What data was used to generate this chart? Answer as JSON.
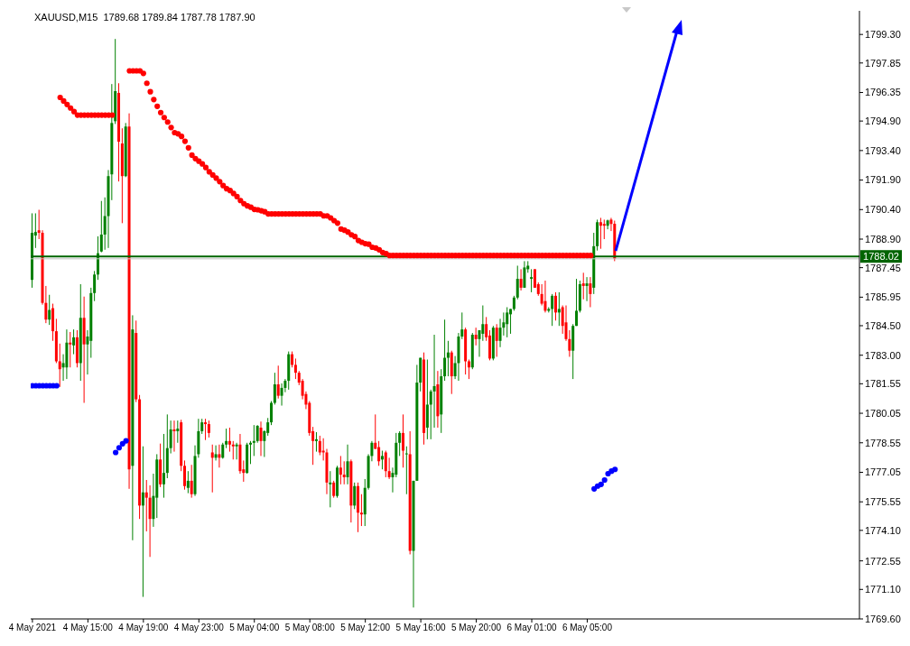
{
  "chart_data": {
    "type": "candlestick",
    "title": "XAUUSD,M15  1789.68 1789.84 1787.78 1787.90",
    "marker": "circle",
    "categories": [
      "4 May 2021",
      null,
      null,
      null,
      null,
      null,
      null,
      null,
      null,
      null,
      null,
      null,
      null,
      null,
      null,
      null,
      "4 May 15:00",
      null,
      null,
      null,
      null,
      null,
      null,
      null,
      null,
      null,
      null,
      null,
      null,
      null,
      null,
      null,
      "4 May 19:00",
      null,
      null,
      null,
      null,
      null,
      null,
      null,
      null,
      null,
      null,
      null,
      null,
      null,
      null,
      null,
      "4 May 23:00",
      null,
      null,
      null,
      null,
      null,
      null,
      null,
      null,
      null,
      null,
      null,
      null,
      null,
      null,
      null,
      "5 May 04:00",
      null,
      null,
      null,
      null,
      null,
      null,
      null,
      null,
      null,
      null,
      null,
      null,
      null,
      null,
      null,
      "5 May 08:00",
      null,
      null,
      null,
      null,
      null,
      null,
      null,
      null,
      null,
      null,
      null,
      null,
      null,
      null,
      null,
      "5 May 12:00",
      null,
      null,
      null,
      null,
      null,
      null,
      null,
      null,
      null,
      null,
      null,
      null,
      null,
      null,
      null,
      "5 May 16:00",
      null,
      null,
      null,
      null,
      null,
      null,
      null,
      null,
      null,
      null,
      null,
      null,
      null,
      null,
      null,
      "5 May 20:00",
      null,
      null,
      null,
      null,
      null,
      null,
      null,
      null,
      null,
      null,
      null,
      null,
      null,
      null,
      null,
      "6 May 01:00",
      null,
      null,
      null,
      null,
      null,
      null,
      null,
      null,
      null,
      null,
      null,
      null,
      null,
      null,
      null,
      "6 May 05:00",
      null,
      null,
      null,
      null,
      null,
      null,
      null,
      null,
      null,
      null,
      null,
      null,
      null,
      null,
      null,
      null,
      null,
      null,
      null,
      null,
      null,
      null,
      null,
      null,
      null,
      null,
      null,
      null,
      null,
      null,
      null,
      null,
      null,
      null,
      null,
      null,
      null,
      null,
      null,
      null,
      null,
      null,
      null,
      null,
      null,
      null,
      null,
      null,
      null,
      null,
      null,
      null,
      null,
      null,
      null,
      null,
      null,
      null,
      null,
      null,
      null,
      null,
      null,
      null,
      null,
      null,
      null,
      null,
      null,
      null,
      null,
      null,
      null,
      null,
      null,
      null,
      null,
      null
    ],
    "ohlc": [
      [
        1786.83,
        1790.21,
        1786.43,
        1789.22
      ],
      [
        1789.08,
        1790.21,
        1788.45,
        1789.26
      ],
      [
        1789.35,
        1790.39,
        1788.9,
        1789.22
      ],
      [
        1789.22,
        1789.35,
        1785.57,
        1785.66
      ],
      [
        1785.66,
        1786.52,
        1784.63,
        1784.81
      ],
      [
        1784.81,
        1786.07,
        1784.54,
        1785.3
      ],
      [
        1785.39,
        1785.62,
        1783.73,
        1784.22
      ],
      [
        1784.22,
        1784.85,
        1782.6,
        1782.69
      ],
      [
        1782.69,
        1783.59,
        1781.39,
        1782.29
      ],
      [
        1782.38,
        1783.05,
        1781.7,
        1782.6
      ],
      [
        1782.38,
        1784.31,
        1781.79,
        1783.64
      ],
      [
        1783.64,
        1784.18,
        1782.38,
        1783.55
      ],
      [
        1783.5,
        1784.31,
        1783.05,
        1783.91
      ],
      [
        1783.91,
        1784.27,
        1782.38,
        1782.6
      ],
      [
        1782.6,
        1786.61,
        1781.7,
        1784.9
      ],
      [
        1784.9,
        1785.98,
        1780.58,
        1783.55
      ],
      [
        1783.55,
        1784.27,
        1782.02,
        1783.95
      ],
      [
        1783.73,
        1786.43,
        1782.87,
        1786.16
      ],
      [
        1786.16,
        1787.28,
        1785.75,
        1787.1
      ],
      [
        1787.1,
        1789.04,
        1786.83,
        1788.18
      ],
      [
        1788.27,
        1790.84,
        1788.23,
        1789.13
      ],
      [
        1789.13,
        1791.02,
        1788.36,
        1790.07
      ],
      [
        1790.07,
        1792.41,
        1788.45,
        1792.1
      ],
      [
        1792.19,
        1796.78,
        1790.88,
        1794.8
      ],
      [
        1794.89,
        1799.07,
        1794.75,
        1796.42
      ],
      [
        1796.33,
        1796.82,
        1791.83,
        1793.85
      ],
      [
        1793.76,
        1794.53,
        1789.71,
        1792.1
      ],
      [
        1792.1,
        1794.8,
        1792.05,
        1794.62
      ],
      [
        1794.62,
        1795.29,
        1776.21,
        1777.2
      ],
      [
        1777.38,
        1785.03,
        1773.6,
        1784.31
      ],
      [
        1784.13,
        1784.76,
        1780.62,
        1780.76
      ],
      [
        1780.76,
        1780.98,
        1774.68,
        1775.36
      ],
      [
        1775.36,
        1778.37,
        1770.72,
        1776.03
      ],
      [
        1776.03,
        1776.66,
        1774.05,
        1775.76
      ],
      [
        1775.76,
        1776.39,
        1772.75,
        1774.68
      ],
      [
        1774.68,
        1776.98,
        1774.28,
        1775.85
      ],
      [
        1775.76,
        1777.97,
        1774.73,
        1777.7
      ],
      [
        1777.7,
        1778.51,
        1776.3,
        1776.44
      ],
      [
        1776.44,
        1779.0,
        1775.76,
        1777.02
      ],
      [
        1777.02,
        1779.99,
        1776.75,
        1778.28
      ],
      [
        1778.28,
        1779.68,
        1778.01,
        1779.23
      ],
      [
        1779.23,
        1779.68,
        1778.1,
        1779.14
      ],
      [
        1779.14,
        1779.68,
        1778.55,
        1779.27
      ],
      [
        1779.59,
        1779.72,
        1777.11,
        1777.38
      ],
      [
        1777.38,
        1777.65,
        1776.17,
        1776.35
      ],
      [
        1776.26,
        1777.11,
        1775.99,
        1776.62
      ],
      [
        1776.62,
        1777.43,
        1775.76,
        1775.94
      ],
      [
        1775.94,
        1778.42,
        1775.85,
        1777.88
      ],
      [
        1777.97,
        1779.77,
        1777.79,
        1779.14
      ],
      [
        1779.14,
        1779.77,
        1779.0,
        1779.59
      ],
      [
        1779.59,
        1779.77,
        1778.69,
        1779.5
      ],
      [
        1779.5,
        1779.68,
        1778.82,
        1779.05
      ],
      [
        1778.06,
        1778.46,
        1776.03,
        1777.79
      ],
      [
        1777.79,
        1778.42,
        1777.65,
        1777.97
      ],
      [
        1777.97,
        1778.46,
        1777.29,
        1777.79
      ],
      [
        1777.79,
        1778.55,
        1777.74,
        1778.46
      ],
      [
        1778.46,
        1779.27,
        1778.28,
        1778.64
      ],
      [
        1778.64,
        1779.32,
        1778.1,
        1778.46
      ],
      [
        1778.46,
        1778.64,
        1777.7,
        1778.37
      ],
      [
        1778.37,
        1778.55,
        1777.7,
        1778.46
      ],
      [
        1778.46,
        1779.0,
        1776.98,
        1777.11
      ],
      [
        1777.2,
        1777.65,
        1776.57,
        1777.02
      ],
      [
        1777.02,
        1778.55,
        1776.98,
        1778.46
      ],
      [
        1778.46,
        1778.64,
        1777.47,
        1778.55
      ],
      [
        1778.55,
        1779.45,
        1777.88,
        1778.64
      ],
      [
        1778.64,
        1779.45,
        1778.55,
        1779.41
      ],
      [
        1779.32,
        1779.63,
        1777.88,
        1778.64
      ],
      [
        1778.64,
        1779.18,
        1777.83,
        1779.14
      ],
      [
        1779.05,
        1779.81,
        1778.91,
        1779.59
      ],
      [
        1779.59,
        1780.67,
        1779.45,
        1780.58
      ],
      [
        1780.58,
        1782.11,
        1780.49,
        1781.52
      ],
      [
        1781.52,
        1782.47,
        1780.8,
        1780.94
      ],
      [
        1780.94,
        1781.57,
        1780.44,
        1781.34
      ],
      [
        1781.34,
        1781.79,
        1781.12,
        1781.7
      ],
      [
        1781.7,
        1783.19,
        1781.25,
        1783.05
      ],
      [
        1783.05,
        1783.19,
        1782.38,
        1782.51
      ],
      [
        1782.51,
        1782.83,
        1781.79,
        1782.11
      ],
      [
        1782.11,
        1782.2,
        1781.48,
        1781.61
      ],
      [
        1781.7,
        1781.79,
        1780.76,
        1780.94
      ],
      [
        1781.03,
        1781.16,
        1780.26,
        1780.49
      ],
      [
        1780.58,
        1780.67,
        1778.91,
        1779.05
      ],
      [
        1779.14,
        1779.36,
        1777.43,
        1778.64
      ],
      [
        1778.64,
        1779.09,
        1778.1,
        1778.73
      ],
      [
        1778.64,
        1778.91,
        1777.92,
        1778.06
      ],
      [
        1778.15,
        1778.78,
        1777.65,
        1778.06
      ],
      [
        1778.06,
        1778.24,
        1775.94,
        1776.53
      ],
      [
        1776.44,
        1777.11,
        1775.27,
        1776.53
      ],
      [
        1776.53,
        1776.62,
        1775.76,
        1775.85
      ],
      [
        1775.85,
        1777.38,
        1775.76,
        1777.29
      ],
      [
        1777.29,
        1777.88,
        1776.44,
        1776.93
      ],
      [
        1776.93,
        1777.61,
        1776.44,
        1776.8
      ],
      [
        1776.8,
        1778.46,
        1776.44,
        1777.61
      ],
      [
        1777.61,
        1777.7,
        1774.5,
        1775.36
      ],
      [
        1775.36,
        1776.53,
        1775.18,
        1776.35
      ],
      [
        1776.35,
        1776.53,
        1774.01,
        1775.0
      ],
      [
        1775.0,
        1775.94,
        1774.32,
        1774.91
      ],
      [
        1774.91,
        1776.71,
        1774.32,
        1776.26
      ],
      [
        1776.26,
        1777.97,
        1776.17,
        1777.88
      ],
      [
        1777.88,
        1778.64,
        1777.61,
        1778.55
      ],
      [
        1778.55,
        1779.99,
        1778.24,
        1778.24
      ],
      [
        1778.33,
        1778.64,
        1777.38,
        1777.61
      ],
      [
        1777.7,
        1778.15,
        1777.2,
        1777.88
      ],
      [
        1778.06,
        1778.15,
        1776.8,
        1777.11
      ],
      [
        1777.11,
        1777.79,
        1776.71,
        1776.8
      ],
      [
        1776.8,
        1777.29,
        1776.03,
        1777.02
      ],
      [
        1776.93,
        1779.05,
        1776.8,
        1778.55
      ],
      [
        1778.55,
        1779.14,
        1777.88,
        1779.05
      ],
      [
        1779.05,
        1779.99,
        1777.29,
        1778.15
      ],
      [
        1777.97,
        1778.37,
        1775.94,
        1778.01
      ],
      [
        1777.97,
        1779.14,
        1772.88,
        1773.06
      ],
      [
        1773.06,
        1776.62,
        1770.18,
        1776.62
      ],
      [
        1776.62,
        1782.51,
        1776.62,
        1781.61
      ],
      [
        1781.61,
        1782.87,
        1781.16,
        1782.87
      ],
      [
        1782.78,
        1783.14,
        1778.46,
        1779.05
      ],
      [
        1779.32,
        1782.78,
        1778.73,
        1780.49
      ],
      [
        1780.49,
        1781.25,
        1778.73,
        1781.16
      ],
      [
        1781.16,
        1784.04,
        1779.32,
        1781.43
      ],
      [
        1781.52,
        1782.2,
        1779.32,
        1779.9
      ],
      [
        1779.99,
        1782.29,
        1779.05,
        1781.93
      ],
      [
        1781.93,
        1784.81,
        1781.7,
        1782.87
      ],
      [
        1782.87,
        1783.73,
        1781.93,
        1783.14
      ],
      [
        1783.14,
        1783.23,
        1781.03,
        1781.93
      ],
      [
        1781.93,
        1782.96,
        1781.79,
        1782.6
      ],
      [
        1782.6,
        1784.13,
        1781.7,
        1783.95
      ],
      [
        1783.95,
        1785.17,
        1783.82,
        1784.31
      ],
      [
        1784.31,
        1784.4,
        1782.02,
        1782.69
      ],
      [
        1782.69,
        1782.78,
        1781.79,
        1782.38
      ],
      [
        1782.38,
        1784.13,
        1782.29,
        1784.04
      ],
      [
        1784.04,
        1784.4,
        1783.5,
        1783.82
      ],
      [
        1783.82,
        1784.27,
        1782.92,
        1784.27
      ],
      [
        1784.09,
        1785.53,
        1783.73,
        1784.58
      ],
      [
        1784.58,
        1784.94,
        1783.73,
        1783.91
      ],
      [
        1784.0,
        1784.27,
        1782.74,
        1782.83
      ],
      [
        1782.83,
        1784.49,
        1782.74,
        1784.4
      ],
      [
        1784.4,
        1784.58,
        1782.92,
        1783.73
      ],
      [
        1783.73,
        1784.85,
        1783.41,
        1784.4
      ],
      [
        1784.4,
        1785.17,
        1784.0,
        1784.67
      ],
      [
        1784.58,
        1785.44,
        1783.91,
        1785.17
      ],
      [
        1785.08,
        1785.35,
        1784.09,
        1785.35
      ],
      [
        1785.35,
        1786.02,
        1785.26,
        1785.93
      ],
      [
        1785.93,
        1787.55,
        1785.84,
        1786.88
      ],
      [
        1786.88,
        1787.37,
        1786.29,
        1786.43
      ],
      [
        1786.43,
        1787.78,
        1786.43,
        1787.46
      ],
      [
        1787.37,
        1787.78,
        1787.19,
        1787.55
      ],
      [
        1786.88,
        1787.37,
        1786.2,
        1786.97
      ],
      [
        1787.37,
        1787.37,
        1786.43,
        1786.43
      ],
      [
        1786.61,
        1786.7,
        1786.02,
        1786.11
      ],
      [
        1786.11,
        1786.61,
        1785.53,
        1785.62
      ],
      [
        1785.75,
        1786.79,
        1785.17,
        1785.26
      ],
      [
        1785.26,
        1785.44,
        1785.17,
        1785.35
      ],
      [
        1785.35,
        1786.11,
        1784.49,
        1786.02
      ],
      [
        1786.02,
        1786.2,
        1784.76,
        1785.17
      ],
      [
        1785.17,
        1786.2,
        1784.49,
        1785.35
      ],
      [
        1785.44,
        1785.53,
        1784.09,
        1784.49
      ],
      [
        1784.67,
        1785.53,
        1783.73,
        1783.82
      ],
      [
        1783.82,
        1784.27,
        1782.92,
        1783.23
      ],
      [
        1783.23,
        1784.58,
        1781.79,
        1784.49
      ],
      [
        1784.49,
        1786.88,
        1784.49,
        1785.26
      ],
      [
        1785.26,
        1786.79,
        1785.17,
        1786.61
      ],
      [
        1786.65,
        1787.19,
        1785.84,
        1786.52
      ],
      [
        1786.52,
        1786.97,
        1785.75,
        1786.65
      ],
      [
        1786.65,
        1786.97,
        1785.44,
        1786.11
      ],
      [
        1786.43,
        1789.22,
        1786.11,
        1788.54
      ],
      [
        1788.54,
        1789.89,
        1788.32,
        1789.76
      ],
      [
        1789.76,
        1789.98,
        1788.41,
        1789.58
      ],
      [
        1789.67,
        1789.89,
        1788.9,
        1789.58
      ],
      [
        1789.58,
        1789.89,
        1789.4,
        1789.85
      ],
      [
        1789.89,
        1789.98,
        1789.31,
        1789.67
      ],
      [
        1789.68,
        1789.84,
        1787.78,
        1787.9
      ],
      null,
      null,
      null,
      null,
      null,
      null,
      null,
      null,
      null,
      null,
      null,
      null,
      null,
      null,
      null,
      null,
      null,
      null,
      null,
      null,
      null,
      null,
      null,
      null,
      null,
      null,
      null,
      null,
      null,
      null,
      null,
      null,
      null,
      null,
      null,
      null,
      null,
      null,
      null,
      null,
      null,
      null,
      null,
      null,
      null,
      null,
      null,
      null,
      null,
      null,
      null,
      null,
      null,
      null,
      null,
      null,
      null,
      null,
      null,
      null,
      null,
      null,
      null,
      null,
      null,
      null,
      null,
      null,
      null,
      null
    ],
    "colors": [
      "#008000",
      "#008000",
      "#ff0000",
      "#ff0000",
      "#ff0000",
      "#008000",
      "#ff0000",
      "#ff0000",
      "#ff0000",
      "#008000",
      "#008000",
      "#ff0000",
      "#008000",
      "#ff0000",
      "#008000",
      "#ff0000",
      "#008000",
      "#008000",
      "#008000",
      "#008000",
      "#008000",
      "#008000",
      "#008000",
      "#008000",
      "#008000",
      "#ff0000",
      "#ff0000",
      "#008000",
      "#ff0000",
      "#008000",
      "#ff0000",
      "#ff0000",
      "#008000",
      "#ff0000",
      "#ff0000",
      "#008000",
      "#008000",
      "#ff0000",
      "#008000",
      "#008000",
      "#008000",
      "#ff0000",
      "#008000",
      "#ff0000",
      "#ff0000",
      "#008000",
      "#ff0000",
      "#008000",
      "#008000",
      "#008000",
      "#ff0000",
      "#ff0000",
      "#ff0000",
      "#008000",
      "#ff0000",
      "#008000",
      "#008000",
      "#ff0000",
      "#ff0000",
      "#008000",
      "#ff0000",
      "#ff0000",
      "#008000",
      "#008000",
      "#008000",
      "#008000",
      "#ff0000",
      "#008000",
      "#008000",
      "#008000",
      "#008000",
      "#ff0000",
      "#008000",
      "#008000",
      "#008000",
      "#ff0000",
      "#ff0000",
      "#ff0000",
      "#ff0000",
      "#ff0000",
      "#ff0000",
      "#ff0000",
      "#008000",
      "#ff0000",
      "#ff0000",
      "#ff0000",
      "#008000",
      "#ff0000",
      "#008000",
      "#ff0000",
      "#ff0000",
      "#008000",
      "#ff0000",
      "#008000",
      "#ff0000",
      "#ff0000",
      "#008000",
      "#008000",
      "#008000",
      "#ff0000",
      "#ff0000",
      "#008000",
      "#ff0000",
      "#ff0000",
      "#008000",
      "#008000",
      "#008000",
      "#ff0000",
      "#008000",
      "#ff0000",
      "#008000",
      "#008000",
      "#008000",
      "#ff0000",
      "#008000",
      "#008000",
      "#008000",
      "#ff0000",
      "#008000",
      "#008000",
      "#008000",
      "#ff0000",
      "#008000",
      "#008000",
      "#008000",
      "#ff0000",
      "#ff0000",
      "#008000",
      "#ff0000",
      "#008000",
      "#008000",
      "#ff0000",
      "#ff0000",
      "#008000",
      "#ff0000",
      "#008000",
      "#008000",
      "#008000",
      "#008000",
      "#008000",
      "#008000",
      "#ff0000",
      "#008000",
      "#008000",
      "#008000",
      "#ff0000",
      "#ff0000",
      "#ff0000",
      "#ff0000",
      "#008000",
      "#008000",
      "#ff0000",
      "#008000",
      "#ff0000",
      "#ff0000",
      "#ff0000",
      "#008000",
      "#008000",
      "#008000",
      "#ff0000",
      "#008000",
      "#ff0000",
      "#008000",
      "#008000",
      "#ff0000",
      "#ff0000",
      "#008000",
      "#ff0000",
      "#ff0000",
      null,
      null,
      null,
      null,
      null,
      null,
      null,
      null,
      null,
      null,
      null,
      null,
      null,
      null,
      null,
      null,
      null,
      null,
      null,
      null,
      null,
      null,
      null,
      null,
      null,
      null,
      null,
      null,
      null,
      null,
      null,
      null,
      null,
      null,
      null,
      null,
      null,
      null,
      null,
      null,
      null,
      null,
      null,
      null,
      null,
      null,
      null,
      null,
      null,
      null,
      null,
      null,
      null,
      null,
      null,
      null,
      null,
      null,
      null,
      null,
      null,
      null,
      null,
      null,
      null,
      null,
      null,
      null,
      null,
      null
    ],
    "series": [
      {
        "type": "scatter",
        "color": "#ff0000",
        "values": [
          null,
          null,
          null,
          null,
          null,
          null,
          null,
          null,
          1796.1,
          1795.92,
          1795.74,
          1795.56,
          1795.38,
          1795.2,
          1795.2,
          1795.2,
          1795.2,
          1795.2,
          1795.2,
          1795.2,
          1795.2,
          1795.2,
          1795.2,
          1795.2,
          null,
          null,
          null,
          null,
          1797.45,
          1797.45,
          1797.45,
          1797.45,
          1797.32,
          1796.82,
          1796.39,
          1795.99,
          1795.65,
          1795.33,
          1795.08,
          1794.85,
          1794.57,
          1794.31,
          1794.25,
          1794.12,
          1793.87,
          1793.54,
          1793.17,
          1792.99,
          1792.86,
          1792.72,
          1792.54,
          1792.32,
          1792.16,
          1792.0,
          1791.82,
          1791.62,
          1791.46,
          1791.37,
          1791.22,
          1791.06,
          1790.86,
          1790.7,
          1790.59,
          1790.52,
          1790.41,
          1790.39,
          1790.34,
          1790.29,
          1790.18,
          1790.18,
          1790.18,
          1790.18,
          1790.18,
          1790.18,
          1790.18,
          1790.18,
          1790.18,
          1790.18,
          1790.18,
          1790.18,
          1790.18,
          1790.18,
          1790.18,
          1790.18,
          1790.08,
          1790.08,
          1789.98,
          1789.84,
          1789.71,
          1789.41,
          1789.35,
          1789.26,
          1789.12,
          1789.03,
          1788.83,
          1788.74,
          1788.67,
          1788.64,
          1788.49,
          1788.45,
          1788.36,
          1788.22,
          1788.16,
          1788.07,
          1788.07,
          1788.07,
          1788.07,
          1788.07,
          1788.07,
          1788.07,
          1788.07,
          1788.07,
          1788.07,
          1788.07,
          1788.07,
          1788.07,
          1788.07,
          1788.07,
          1788.07,
          1788.07,
          1788.07,
          1788.07,
          1788.07,
          1788.07,
          1788.07,
          1788.07,
          1788.07,
          1788.07,
          1788.07,
          1788.07,
          1788.07,
          1788.07,
          1788.07,
          1788.07,
          1788.07,
          1788.07,
          1788.07,
          1788.07,
          1788.07,
          1788.07,
          1788.07,
          1788.07,
          1788.07,
          1788.07,
          1788.07,
          1788.07,
          1788.07,
          1788.07,
          1788.07,
          1788.07,
          1788.07,
          1788.07,
          1788.07,
          1788.07,
          1788.07,
          1788.07,
          1788.07,
          1788.07,
          1788.07,
          1788.07,
          1788.07,
          1788.07,
          null,
          null,
          null,
          null,
          null,
          null,
          null,
          null,
          null,
          null,
          null,
          null,
          null,
          null,
          null,
          null,
          null,
          null,
          null,
          null,
          null,
          null,
          null,
          null,
          null,
          null,
          null,
          null,
          null,
          null,
          null,
          null,
          null,
          null,
          null,
          null,
          null,
          null,
          null,
          null,
          null,
          null,
          null,
          null,
          null,
          null,
          null,
          null,
          null,
          null,
          null,
          null,
          null,
          null,
          null,
          null,
          null,
          null,
          null,
          null,
          null,
          null,
          null,
          null,
          null,
          null,
          null,
          null,
          null,
          null,
          null,
          null,
          null,
          null,
          null,
          null,
          null
        ]
      },
      {
        "type": "scatter",
        "color": "#0000ff",
        "values": [
          1781.45,
          1781.45,
          1781.45,
          1781.45,
          1781.45,
          1781.45,
          1781.45,
          1781.45,
          null,
          null,
          null,
          null,
          null,
          null,
          null,
          null,
          null,
          null,
          null,
          null,
          null,
          null,
          null,
          null,
          1778.06,
          1778.3,
          1778.5,
          1778.65,
          null,
          null,
          null,
          null,
          null,
          null,
          null,
          null,
          null,
          null,
          null,
          null,
          null,
          null,
          null,
          null,
          null,
          null,
          null,
          null,
          null,
          null,
          null,
          null,
          null,
          null,
          null,
          null,
          null,
          null,
          null,
          null,
          null,
          null,
          null,
          null,
          null,
          null,
          null,
          null,
          null,
          null,
          null,
          null,
          null,
          null,
          null,
          null,
          null,
          null,
          null,
          null,
          null,
          null,
          null,
          null,
          null,
          null,
          null,
          null,
          null,
          null,
          null,
          null,
          null,
          null,
          null,
          null,
          null,
          null,
          null,
          null,
          null,
          null,
          null,
          null,
          null,
          null,
          null,
          null,
          null,
          null,
          null,
          null,
          null,
          null,
          null,
          null,
          null,
          null,
          null,
          null,
          null,
          null,
          null,
          null,
          null,
          null,
          null,
          null,
          null,
          null,
          null,
          null,
          null,
          null,
          null,
          null,
          null,
          null,
          null,
          null,
          null,
          null,
          null,
          null,
          null,
          null,
          null,
          null,
          null,
          null,
          null,
          null,
          null,
          null,
          null,
          null,
          null,
          null,
          null,
          null,
          null,
          null,
          1776.21,
          1776.35,
          1776.44,
          1776.66,
          1776.98,
          1777.11,
          1777.2,
          null,
          null,
          null,
          null,
          null,
          null,
          null,
          null,
          null,
          null,
          null,
          null,
          null,
          null,
          null,
          null,
          null,
          null,
          null,
          null,
          null,
          null,
          null,
          null,
          null,
          null,
          null,
          null,
          null,
          null,
          null,
          null,
          null,
          null,
          null,
          null,
          null,
          null,
          null,
          null,
          null,
          null,
          null,
          null,
          null,
          null,
          null,
          null,
          null,
          null,
          null,
          null,
          null,
          null,
          null,
          null,
          null,
          null,
          null,
          null,
          null,
          null,
          null,
          null,
          null,
          null,
          null,
          null,
          null,
          null
        ]
      }
    ],
    "ylim": [
      1769.6,
      1800.5
    ],
    "yticks": [
      {
        "value": 1769.6,
        "label": "1769.60"
      },
      {
        "value": 1771.1,
        "label": "1771.10"
      },
      {
        "value": 1772.55,
        "label": "1772.55"
      },
      {
        "value": 1774.1,
        "label": "1774.10"
      },
      {
        "value": 1775.55,
        "label": "1775.55"
      },
      {
        "value": 1777.05,
        "label": "1777.05"
      },
      {
        "value": 1778.55,
        "label": "1778.55"
      },
      {
        "value": 1780.05,
        "label": "1780.05"
      },
      {
        "value": 1781.55,
        "label": "1781.55"
      },
      {
        "value": 1783,
        "label": "1783.00"
      },
      {
        "value": 1784.5,
        "label": "1784.50"
      },
      {
        "value": 1785.95,
        "label": "1785.95"
      },
      {
        "value": 1787.45,
        "label": "1787.45"
      },
      {
        "value": 1788.9,
        "label": "1788.90"
      },
      {
        "value": 1790.4,
        "label": "1790.40"
      },
      {
        "value": 1791.9,
        "label": "1791.90"
      },
      {
        "value": 1793.4,
        "label": "1793.40"
      },
      {
        "value": 1794.9,
        "label": "1794.90"
      },
      {
        "value": 1796.35,
        "label": "1796.35"
      },
      {
        "value": 1797.85,
        "label": "1797.85"
      },
      {
        "value": 1799.3,
        "label": "1799.30"
      }
    ],
    "ref_lines": [
      {
        "axis": "y",
        "value": 1787.9,
        "color": "#c0c0c0"
      },
      {
        "axis": "y",
        "value": 1788.02,
        "label": "1788.02",
        "color": "#006400"
      }
    ]
  }
}
